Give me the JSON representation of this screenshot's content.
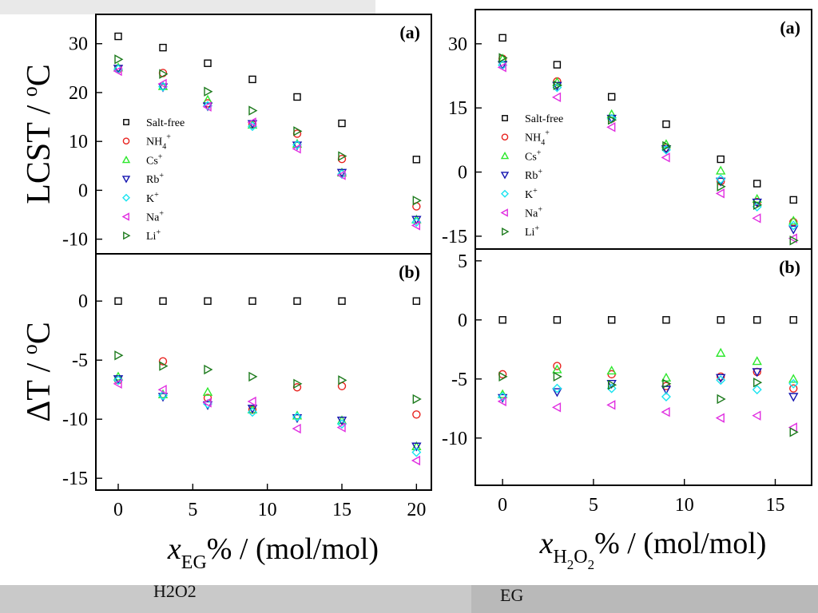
{
  "chart_data": [
    {
      "type": "scatter",
      "name": "left-figure",
      "xlabel": "x_EG% / (mol/mol)",
      "xlabel_main": "x",
      "xlabel_sub": "EG",
      "xlabel_rest": "% / (mol/mol)",
      "xlim": [
        -1.5,
        21
      ],
      "xticks": [
        0,
        5,
        10,
        15,
        20
      ],
      "panels": [
        {
          "label": "(a)",
          "ylabel": "LCST / oC",
          "ylabel_main": "LCST / ",
          "ylabel_sup": "o",
          "ylabel_unit": "C",
          "ylim": [
            -13,
            36
          ],
          "yticks": [
            30,
            20,
            10,
            0,
            -10
          ],
          "legend_position": "center-left",
          "x": [
            0,
            3,
            6,
            9,
            12,
            15,
            20
          ],
          "series": [
            {
              "name": "Salt-free",
              "values": [
                31.5,
                29.2,
                26.0,
                22.7,
                19.1,
                13.7,
                6.3
              ]
            },
            {
              "name": "NH4+",
              "values": [
                24.8,
                24.0,
                17.8,
                13.5,
                11.6,
                6.4,
                -3.3
              ]
            },
            {
              "name": "Cs+",
              "values": [
                25.1,
                21.3,
                18.5,
                13.4,
                9.5,
                3.6,
                -6.0
              ]
            },
            {
              "name": "Rb+",
              "values": [
                24.9,
                21.1,
                17.2,
                13.6,
                9.2,
                3.6,
                -6.0
              ]
            },
            {
              "name": "K+",
              "values": [
                24.8,
                21.2,
                17.3,
                13.1,
                9.3,
                3.3,
                -6.5
              ]
            },
            {
              "name": "Na+",
              "values": [
                24.4,
                21.8,
                17.1,
                13.9,
                8.5,
                3.1,
                -7.2
              ]
            },
            {
              "name": "Li+",
              "values": [
                26.8,
                23.8,
                20.2,
                16.3,
                12.1,
                7.0,
                -2.1
              ]
            }
          ]
        },
        {
          "label": "(b)",
          "ylabel": "ΔT / oC",
          "ylabel_main": "ΔT / ",
          "ylabel_sup": "o",
          "ylabel_unit": "C",
          "ylim": [
            -16,
            4
          ],
          "yticks": [
            0,
            -5,
            -10,
            -15
          ],
          "x": [
            0,
            3,
            6,
            9,
            12,
            15,
            20
          ],
          "series": [
            {
              "name": "Salt-free",
              "values": [
                0,
                0,
                0,
                0,
                0,
                0,
                0
              ]
            },
            {
              "name": "NH4+",
              "values": [
                -6.7,
                -5.1,
                -8.2,
                -9.2,
                -7.3,
                -7.2,
                -9.6
              ]
            },
            {
              "name": "Cs+",
              "values": [
                -6.4,
                -7.9,
                -7.7,
                -9.2,
                -9.7,
                -10.1,
                -12.3
              ]
            },
            {
              "name": "Rb+",
              "values": [
                -6.6,
                -8.1,
                -8.8,
                -9.1,
                -9.9,
                -10.1,
                -12.3
              ]
            },
            {
              "name": "K+",
              "values": [
                -6.7,
                -8.0,
                -8.7,
                -9.4,
                -9.8,
                -10.4,
                -12.8
              ]
            },
            {
              "name": "Na+",
              "values": [
                -7.0,
                -7.5,
                -8.6,
                -8.5,
                -10.8,
                -10.7,
                -13.5
              ]
            },
            {
              "name": "Li+",
              "values": [
                -4.6,
                -5.5,
                -5.8,
                -6.4,
                -7.0,
                -6.7,
                -8.3
              ]
            }
          ]
        }
      ]
    },
    {
      "type": "scatter",
      "name": "right-figure",
      "xlabel": "x_H2O2% / (mol/mol)",
      "xlabel_main": "x",
      "xlabel_sub": "H",
      "xlabel_sub2": "2",
      "xlabel_sub3": "O",
      "xlabel_sub4": "2",
      "xlabel_rest": "% / (mol/mol)",
      "xlim": [
        -1.5,
        17
      ],
      "xticks": [
        0,
        5,
        10,
        15
      ],
      "panels": [
        {
          "label": "(a)",
          "ylim": [
            -18,
            38
          ],
          "yticks": [
            30,
            15,
            0,
            -15
          ],
          "legend_position": "center-left",
          "x": [
            0,
            3,
            6,
            9,
            12,
            14,
            16
          ],
          "series": [
            {
              "name": "Salt-free",
              "values": [
                31.4,
                25.1,
                17.6,
                11.2,
                3.0,
                -2.7,
                -6.5
              ]
            },
            {
              "name": "NH4+",
              "values": [
                26.5,
                21.2,
                12.5,
                5.7,
                -2.2,
                -7.0,
                -11.7
              ]
            },
            {
              "name": "Cs+",
              "values": [
                26.5,
                21.0,
                13.5,
                6.5,
                0.3,
                -6.3,
                -11.4
              ]
            },
            {
              "name": "Rb+",
              "values": [
                25.1,
                20.2,
                12.5,
                5.4,
                -2.2,
                -7.1,
                -13.4
              ]
            },
            {
              "name": "K+",
              "values": [
                25.0,
                19.8,
                12.5,
                5.2,
                -1.7,
                -8.1,
                -12.5
              ]
            },
            {
              "name": "Na+",
              "values": [
                24.5,
                17.5,
                10.5,
                3.4,
                -5.0,
                -10.8,
                -15.5
              ]
            },
            {
              "name": "Li+",
              "values": [
                26.7,
                20.3,
                12.2,
                6.1,
                -3.4,
                -7.7,
                -16.0
              ]
            }
          ]
        },
        {
          "label": "(b)",
          "ylim": [
            -14,
            6
          ],
          "yticks": [
            5,
            0,
            -5,
            -10
          ],
          "x": [
            0,
            3,
            6,
            9,
            12,
            14,
            16
          ],
          "series": [
            {
              "name": "Salt-free",
              "values": [
                0,
                0,
                0,
                0,
                0,
                0,
                0
              ]
            },
            {
              "name": "NH4+",
              "values": [
                -4.6,
                -3.9,
                -4.6,
                -5.6,
                -4.8,
                -4.4,
                -5.8
              ]
            },
            {
              "name": "Cs+",
              "values": [
                -6.3,
                -4.2,
                -4.3,
                -4.9,
                -2.8,
                -3.5,
                -5.0
              ]
            },
            {
              "name": "Rb+",
              "values": [
                -6.6,
                -6.1,
                -5.4,
                -5.9,
                -4.9,
                -4.4,
                -6.5
              ]
            },
            {
              "name": "K+",
              "values": [
                -6.5,
                -5.8,
                -5.8,
                -6.5,
                -5.1,
                -5.9,
                -5.4
              ]
            },
            {
              "name": "Na+",
              "values": [
                -6.9,
                -7.4,
                -7.2,
                -7.8,
                -8.3,
                -8.1,
                -9.1
              ]
            },
            {
              "name": "Li+",
              "values": [
                -4.8,
                -4.8,
                -5.5,
                -5.4,
                -6.7,
                -5.3,
                -9.5
              ]
            }
          ]
        }
      ]
    }
  ],
  "legend_entries": [
    {
      "main": "Salt-free",
      "sub": "",
      "sup": ""
    },
    {
      "main": "NH",
      "sub": "4",
      "sup": "+"
    },
    {
      "main": "Cs",
      "sub": "",
      "sup": "+"
    },
    {
      "main": "Rb",
      "sub": "",
      "sup": "+"
    },
    {
      "main": "K",
      "sub": "",
      "sup": "+"
    },
    {
      "main": "Na",
      "sub": "",
      "sup": "+"
    },
    {
      "main": "Li",
      "sub": "",
      "sup": "+"
    }
  ],
  "series_style": [
    {
      "marker": "square",
      "color": "#000000"
    },
    {
      "marker": "circle",
      "color": "#e8231f"
    },
    {
      "marker": "triangle-up",
      "color": "#2ee82e"
    },
    {
      "marker": "triangle-down",
      "color": "#1515b0"
    },
    {
      "marker": "diamond",
      "color": "#19e3f0"
    },
    {
      "marker": "triangle-left",
      "color": "#e02ee0"
    },
    {
      "marker": "triangle-right",
      "color": "#1c7a1c"
    }
  ],
  "background_text": {
    "left_bottom": "H2O2",
    "right_bottom": "EG"
  }
}
